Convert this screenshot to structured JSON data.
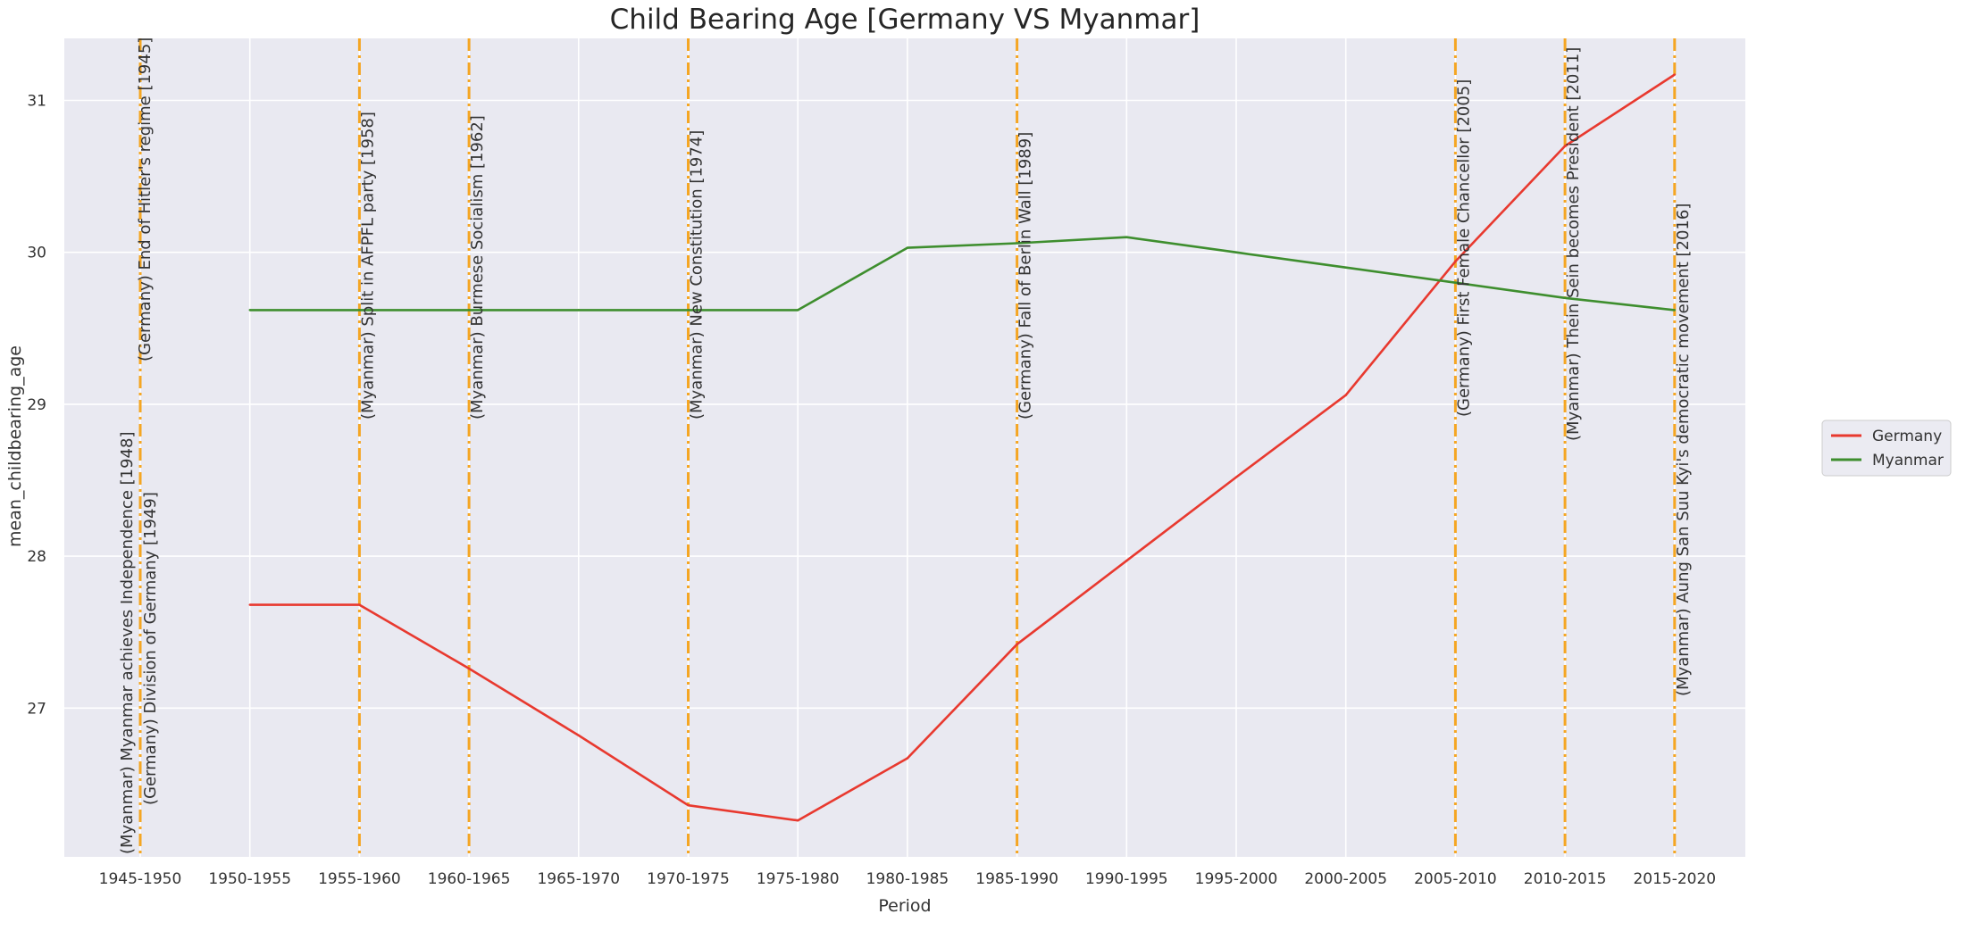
{
  "chart_data": {
    "type": "line",
    "title": "Child Bearing Age [Germany VS Myanmar]",
    "xlabel": "Period",
    "ylabel": "mean_childbearing_age",
    "categories": [
      "1945-1950",
      "1950-1955",
      "1955-1960",
      "1960-1965",
      "1965-1970",
      "1970-1975",
      "1975-1980",
      "1980-1985",
      "1985-1990",
      "1990-1995",
      "1995-2000",
      "2000-2005",
      "2005-2010",
      "2010-2015",
      "2015-2020"
    ],
    "ylim": [
      26.0,
      31.4
    ],
    "yticks": [
      27,
      28,
      29,
      30,
      31
    ],
    "grid": true,
    "legend_position": "right",
    "series": [
      {
        "name": "Germany",
        "color": "#e8392f",
        "values": [
          null,
          27.68,
          27.68,
          27.26,
          26.82,
          26.36,
          26.26,
          26.67,
          27.42,
          27.97,
          28.52,
          29.06,
          29.94,
          30.7,
          31.17
        ]
      },
      {
        "name": "Myanmar",
        "color": "#3e8e2e",
        "values": [
          null,
          29.62,
          29.62,
          29.62,
          29.62,
          29.62,
          29.62,
          30.03,
          30.06,
          30.1,
          30.0,
          29.9,
          29.8,
          29.7,
          29.62
        ]
      }
    ],
    "events": [
      {
        "x": 0,
        "labels": [
          "(Myanmar) Myanmar achieves Independence [1948]",
          "(Germany) Division of Germany [1949]",
          "(Germany) End of Hitler's regime [1945]"
        ]
      },
      {
        "x": 2,
        "labels": [
          "(Myanmar) Split in AFPFL party [1958]"
        ]
      },
      {
        "x": 3,
        "labels": [
          "(Myanmar) Burmese Socialism [1962]"
        ]
      },
      {
        "x": 5,
        "labels": [
          "(Myanmar) New Constitution [1974]"
        ]
      },
      {
        "x": 8,
        "labels": [
          "(Germany) Fall of Berlin Wall [1989]"
        ]
      },
      {
        "x": 12,
        "labels": [
          "(Germany) First Female Chancellor [2005]"
        ]
      },
      {
        "x": 13,
        "labels": [
          "(Myanmar) Thein Sein becomes President [2011]"
        ]
      },
      {
        "x": 14,
        "labels": [
          "(Myanmar) Aung San Suu Kyi's democratic movement [2016]"
        ]
      }
    ],
    "event_line_color": "#f5a623",
    "plot_background": "#e9e9f1",
    "grid_color": "#ffffff"
  }
}
